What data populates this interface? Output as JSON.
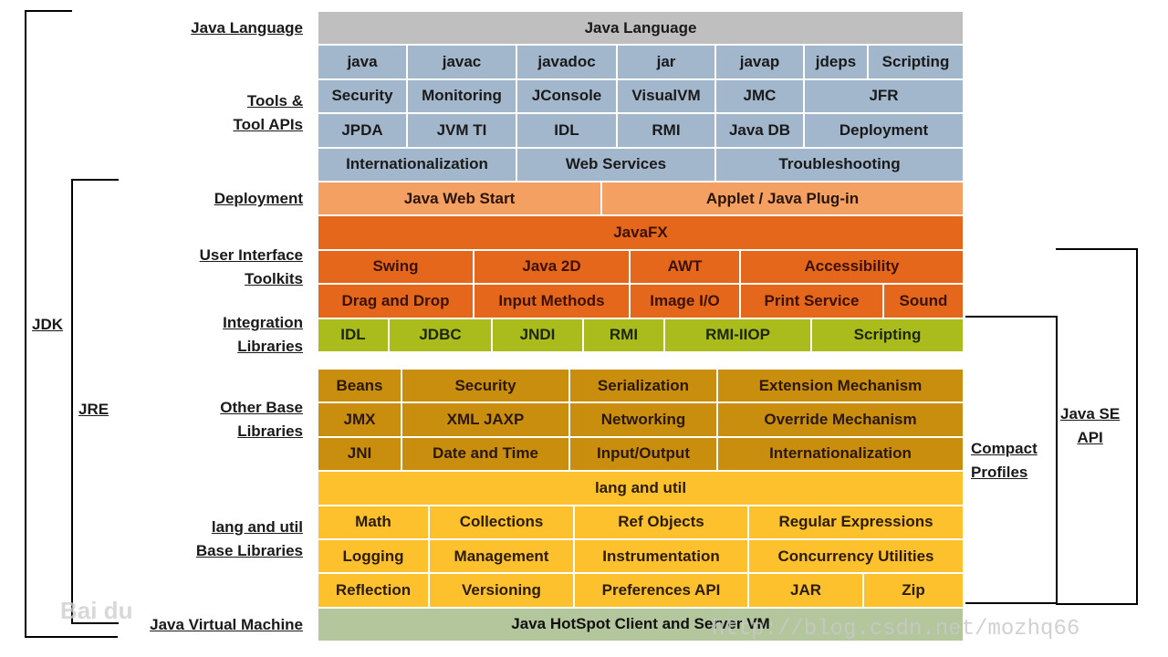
{
  "layers": [
    {
      "label": [
        "Java Language"
      ],
      "rows": [
        {
          "theme": "grey",
          "cells": [
            {
              "text": "Java Language",
              "w": 1
            }
          ]
        }
      ]
    },
    {
      "label": [
        "Tools &",
        "Tool APIs"
      ],
      "rows": [
        {
          "theme": "blue",
          "cells": [
            {
              "text": "java",
              "w": 98
            },
            {
              "text": "javac",
              "w": 120
            },
            {
              "text": "javadoc",
              "w": 110
            },
            {
              "text": "jar",
              "w": 108
            },
            {
              "text": "javap",
              "w": 97
            },
            {
              "text": "jdeps",
              "w": 70
            },
            {
              "text": "Scripting",
              "w": 105
            }
          ]
        },
        {
          "theme": "blue",
          "cells": [
            {
              "text": "Security",
              "w": 98
            },
            {
              "text": "Monitoring",
              "w": 120
            },
            {
              "text": "JConsole",
              "w": 110
            },
            {
              "text": "VisualVM",
              "w": 108
            },
            {
              "text": "JMC",
              "w": 97
            },
            {
              "text": "JFR",
              "w": 175
            }
          ]
        },
        {
          "theme": "blue",
          "cells": [
            {
              "text": "JPDA",
              "w": 98
            },
            {
              "text": "JVM TI",
              "w": 120
            },
            {
              "text": "IDL",
              "w": 110
            },
            {
              "text": "RMI",
              "w": 108
            },
            {
              "text": "Java DB",
              "w": 97
            },
            {
              "text": "Deployment",
              "w": 175
            }
          ]
        },
        {
          "theme": "blue",
          "cells": [
            {
              "text": "Internationalization",
              "w": 218
            },
            {
              "text": "Web Services",
              "w": 218
            },
            {
              "text": "Troubleshooting",
              "w": 272
            }
          ]
        }
      ]
    },
    {
      "label": [
        "Deployment"
      ],
      "rows": [
        {
          "theme": "lorange",
          "cells": [
            {
              "text": "Java Web Start",
              "w": 311
            },
            {
              "text": "Applet / Java Plug-in",
              "w": 397
            }
          ]
        }
      ]
    },
    {
      "label": [
        "User Interface",
        "Toolkits"
      ],
      "rows": [
        {
          "theme": "orange",
          "cells": [
            {
              "text": "JavaFX",
              "w": 1
            }
          ]
        },
        {
          "theme": "orange",
          "cells": [
            {
              "text": "Swing",
              "w": 171
            },
            {
              "text": "Java 2D",
              "w": 171
            },
            {
              "text": "AWT",
              "w": 121
            },
            {
              "text": "Accessibility",
              "w": 245
            }
          ]
        },
        {
          "theme": "orange",
          "cells": [
            {
              "text": "Drag and Drop",
              "w": 171
            },
            {
              "text": "Input Methods",
              "w": 171
            },
            {
              "text": "Image I/O",
              "w": 121
            },
            {
              "text": "Print Service",
              "w": 157
            },
            {
              "text": "Sound",
              "w": 88
            }
          ]
        }
      ]
    },
    {
      "label": [
        "Integration",
        "Libraries"
      ],
      "rows": [
        {
          "theme": "olive",
          "cells": [
            {
              "text": "IDL",
              "w": 78
            },
            {
              "text": "JDBC",
              "w": 113
            },
            {
              "text": "JNDI",
              "w": 100
            },
            {
              "text": "RMI",
              "w": 89
            },
            {
              "text": "RMI-IIOP",
              "w": 161
            },
            {
              "text": "Scripting",
              "w": 167
            }
          ]
        }
      ]
    },
    {
      "label": [
        "Other Base",
        "Libraries"
      ],
      "gap": true,
      "rows": [
        {
          "theme": "gold",
          "cells": [
            {
              "text": "Beans",
              "w": 92
            },
            {
              "text": "Security",
              "w": 184
            },
            {
              "text": "Serialization",
              "w": 162
            },
            {
              "text": "Extension Mechanism",
              "w": 270
            }
          ]
        },
        {
          "theme": "gold",
          "cells": [
            {
              "text": "JMX",
              "w": 92
            },
            {
              "text": "XML JAXP",
              "w": 184
            },
            {
              "text": "Networking",
              "w": 162
            },
            {
              "text": "Override Mechanism",
              "w": 270
            }
          ]
        },
        {
          "theme": "gold",
          "cells": [
            {
              "text": "JNI",
              "w": 92
            },
            {
              "text": "Date and Time",
              "w": 184
            },
            {
              "text": "Input/Output",
              "w": 162
            },
            {
              "text": "Internationalization",
              "w": 270
            }
          ]
        }
      ]
    },
    {
      "label": [
        "lang and util",
        "Base Libraries"
      ],
      "rows": [
        {
          "theme": "yellow",
          "cells": [
            {
              "text": "lang and util",
              "w": 1
            }
          ]
        },
        {
          "theme": "yellow",
          "cells": [
            {
              "text": "Math",
              "w": 122
            },
            {
              "text": "Collections",
              "w": 159
            },
            {
              "text": "Ref Objects",
              "w": 191
            },
            {
              "text": "Regular Expressions",
              "w": 236
            }
          ]
        },
        {
          "theme": "yellow",
          "cells": [
            {
              "text": "Logging",
              "w": 122
            },
            {
              "text": "Management",
              "w": 159
            },
            {
              "text": "Instrumentation",
              "w": 191
            },
            {
              "text": "Concurrency Utilities",
              "w": 236
            }
          ]
        },
        {
          "theme": "yellow",
          "cells": [
            {
              "text": "Reflection",
              "w": 122
            },
            {
              "text": "Versioning",
              "w": 159
            },
            {
              "text": "Preferences API",
              "w": 191
            },
            {
              "text": "JAR",
              "w": 126
            },
            {
              "text": "Zip",
              "w": 110
            }
          ]
        }
      ]
    },
    {
      "label": [
        "Java Virtual Machine"
      ],
      "rows": [
        {
          "theme": "green",
          "cells": [
            {
              "text": "Java HotSpot Client and Server VM",
              "w": 1
            }
          ]
        }
      ]
    }
  ],
  "brackets": {
    "jdk": "JDK",
    "jre": "JRE",
    "compact": [
      "Compact",
      "Profiles"
    ],
    "javase": [
      "Java SE",
      "API"
    ]
  },
  "watermark": {
    "logo": "Bai du",
    "url": "http://blog.csdn.net/mozhq66"
  },
  "colors": {
    "grey": "#bfbfbf",
    "blue": "#a2b7cc",
    "lorange": "#f4a063",
    "orange": "#e5671c",
    "olive": "#a9bc1c",
    "gold": "#c98e0e",
    "yellow": "#fdc12d",
    "green": "#b3c69c"
  }
}
